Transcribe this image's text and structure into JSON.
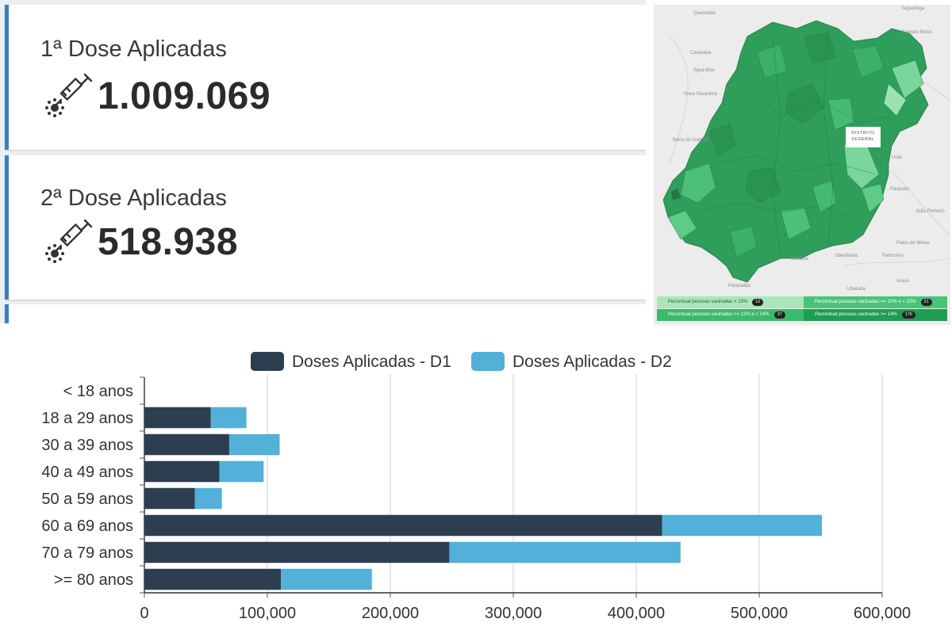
{
  "cards": [
    {
      "title": "1ª Dose Aplicadas",
      "value": "1.009.069",
      "icon": "vaccine-syringe-icon"
    },
    {
      "title": "2ª Dose Aplicadas",
      "value": "518.938",
      "icon": "vaccine-syringe-icon"
    }
  ],
  "map": {
    "district_label": "DISTRITO FEDERAL",
    "places": [
      "Queimada",
      "Canarana",
      "Água Boa",
      "Nova Xavantina",
      "Barra do Garças",
      "Unaí",
      "Paracatu",
      "João Pinheiro",
      "Patos de Minas",
      "Patrocínio",
      "Uberlândia",
      "Uberaba",
      "Araxá",
      "Ituiutaba",
      "Paranaíba",
      "Taguatinga",
      "Campos Belos"
    ],
    "legend": [
      {
        "label": "Percentual pessoas vacinadas < 10%",
        "count": "12",
        "color": "#a8e7bc"
      },
      {
        "label": "Percentual pessoas vacinadas >= 10% e < 12%",
        "count": "21",
        "color": "#47c477"
      },
      {
        "label": "Percentual pessoas vacinadas >= 12% e < 14%",
        "count": "37",
        "color": "#3bb96d"
      },
      {
        "label": "Percentual pessoas vacinadas >= 14%",
        "count": "176",
        "color": "#1f9d52"
      }
    ]
  },
  "chart_data": {
    "type": "bar",
    "orientation": "horizontal",
    "stacked": true,
    "categories": [
      "< 18 anos",
      "18 a 29 anos",
      "30 a 39 anos",
      "40 a 49 anos",
      "50 a 59 anos",
      "60 a 69 anos",
      "70 a 79  anos",
      ">= 80 anos"
    ],
    "series": [
      {
        "name": "Doses Aplicadas - D1",
        "color": "#2c3e50",
        "values": [
          0,
          54000,
          69000,
          61000,
          41000,
          421000,
          248000,
          111000
        ]
      },
      {
        "name": "Doses Aplicadas - D2",
        "color": "#52b0d9",
        "values": [
          0,
          29000,
          41000,
          36000,
          22000,
          130000,
          188000,
          74000
        ]
      }
    ],
    "xlim": [
      0,
      600000
    ],
    "xticks": [
      0,
      100000,
      200000,
      300000,
      400000,
      500000,
      600000
    ],
    "xtick_labels": [
      "0",
      "100,000",
      "200,000",
      "300,000",
      "400,000",
      "500,000",
      "600,000"
    ],
    "legend_position": "top",
    "grid": "vertical"
  }
}
